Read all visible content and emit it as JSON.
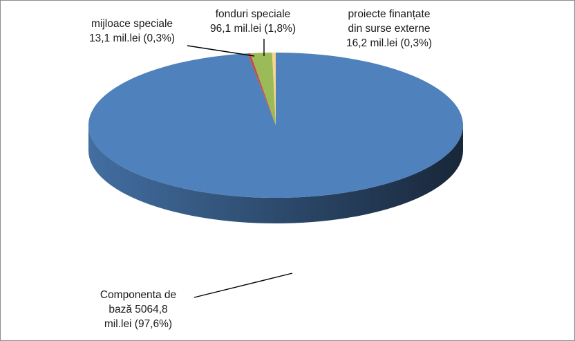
{
  "chart_data": {
    "type": "pie",
    "title": "",
    "slices": [
      {
        "label_lines": [
          "Componenta de",
          "bază 5064,8",
          "mil.lei (97,6%)"
        ],
        "value": 5064.8,
        "percent": 97.6,
        "color": "#4f81bd"
      },
      {
        "label_lines": [
          "mijloace speciale",
          "13,1 mil.lei (0,3%)"
        ],
        "value": 13.1,
        "percent": 0.3,
        "color": "#c0504d"
      },
      {
        "label_lines": [
          "fonduri speciale",
          "96,1 mil.lei (1,8%)"
        ],
        "value": 96.1,
        "percent": 1.8,
        "color": "#9bbb59"
      },
      {
        "label_lines": [
          "proiecte finanțate",
          "din surse externe",
          "16,2 mil.lei (0,3%)"
        ],
        "value": 16.2,
        "percent": 0.3,
        "color": "#f5d58e"
      }
    ],
    "legend": "none"
  }
}
